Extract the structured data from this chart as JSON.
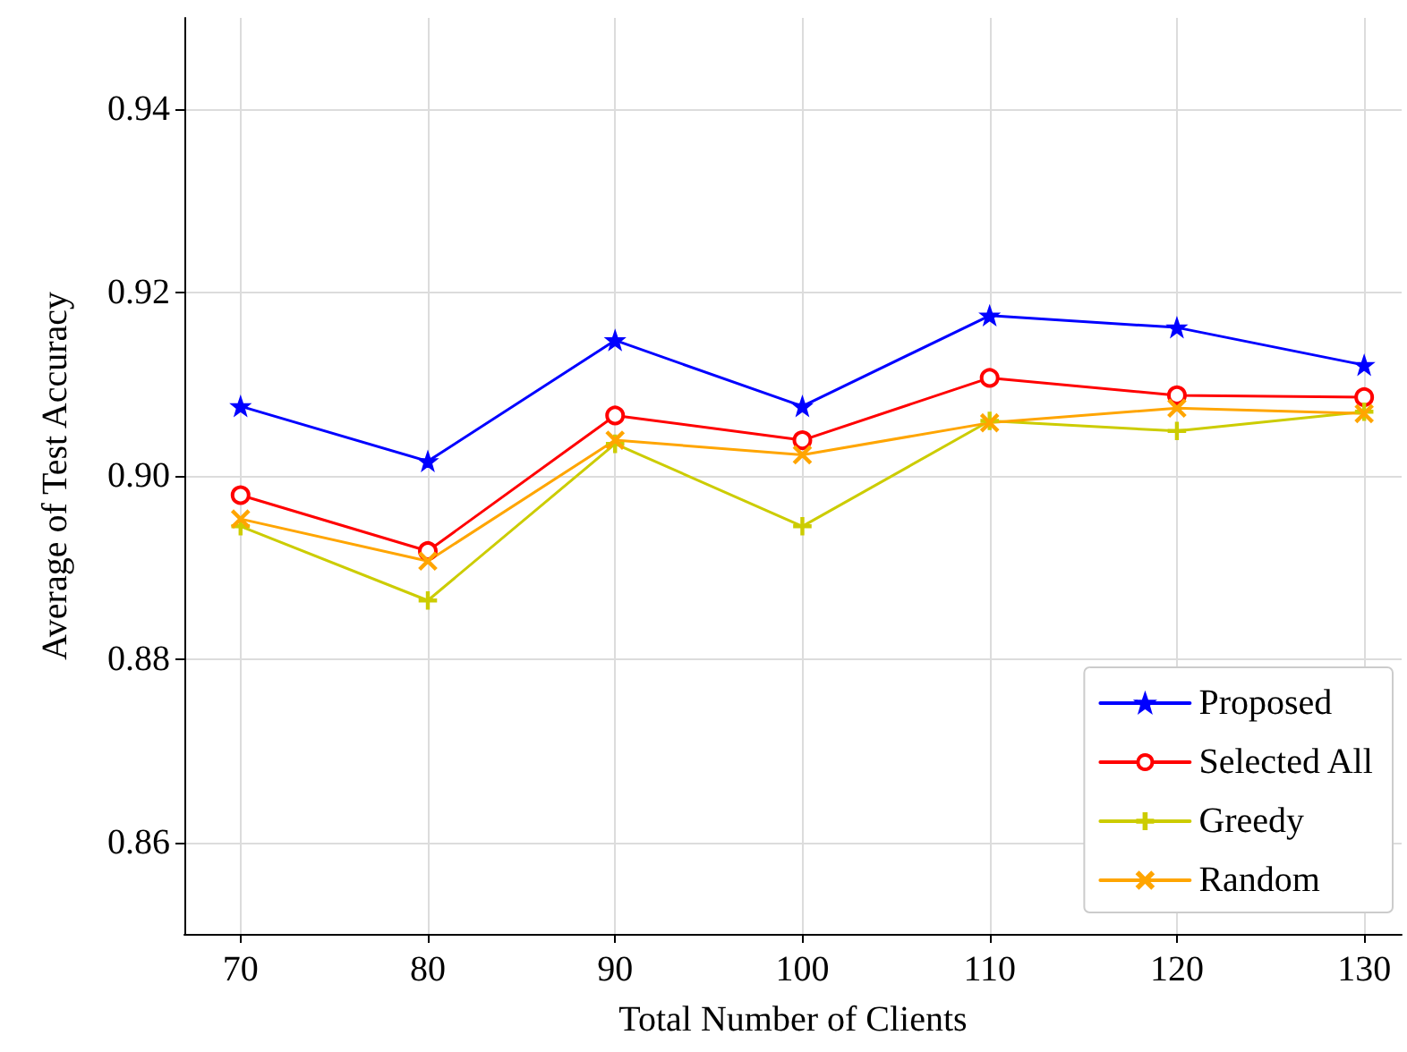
{
  "chart_data": {
    "type": "line",
    "xlabel": "Total Number of Clients",
    "ylabel": "Average of Test Accuracy",
    "x": [
      70,
      80,
      90,
      100,
      110,
      120,
      130
    ],
    "series": [
      {
        "name": "Proposed",
        "color": "#0000ff",
        "marker": "star",
        "values": [
          0.9076,
          0.9016,
          0.9148,
          0.9076,
          0.9175,
          0.9162,
          0.9121
        ]
      },
      {
        "name": "Selected All",
        "color": "#ff0000",
        "marker": "circle",
        "values": [
          0.8979,
          0.8918,
          0.9066,
          0.9039,
          0.9107,
          0.9088,
          0.9086
        ]
      },
      {
        "name": "Greedy",
        "color": "#cccc00",
        "marker": "plus",
        "values": [
          0.8945,
          0.8864,
          0.9035,
          0.8945,
          0.906,
          0.9049,
          0.907
        ]
      },
      {
        "name": "Random",
        "color": "#ffa500",
        "marker": "cross",
        "values": [
          0.8953,
          0.8907,
          0.9039,
          0.9023,
          0.9058,
          0.9074,
          0.9068
        ]
      }
    ],
    "xlim": [
      67,
      132
    ],
    "xticks": [
      70,
      80,
      90,
      100,
      110,
      120,
      130
    ],
    "ylim": [
      0.85,
      0.95
    ],
    "yticks": [
      0.86,
      0.88,
      {
        "value": 0.9,
        "label": "0.90"
      },
      0.92,
      0.94
    ],
    "grid": true,
    "legend": "bottom right"
  }
}
